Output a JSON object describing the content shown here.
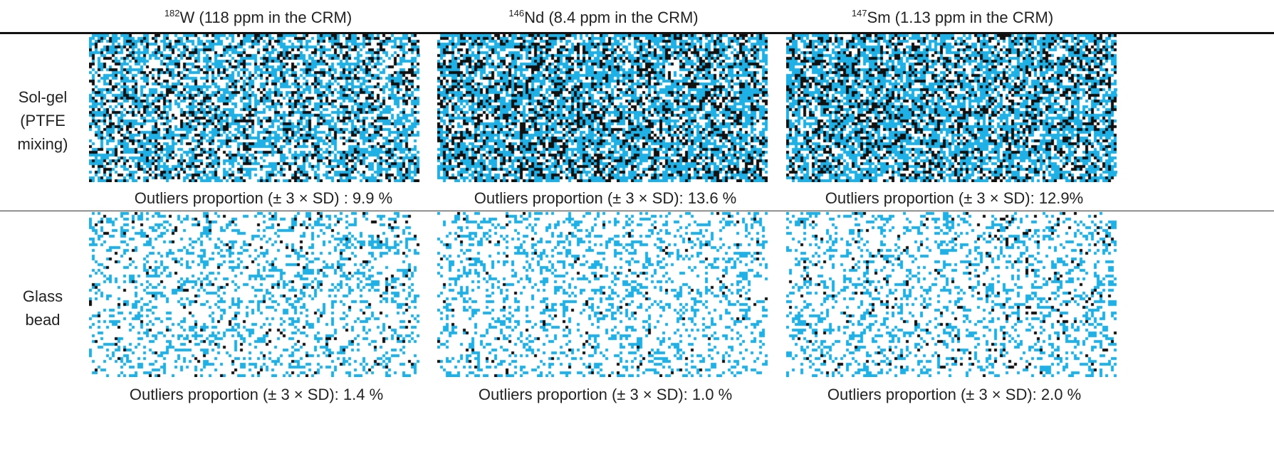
{
  "table": {
    "columns": [
      {
        "isotope_mass": "182",
        "element": "W",
        "detail": " (118 ppm in the CRM)"
      },
      {
        "isotope_mass": "146",
        "element": "Nd",
        "detail": " (8.4 ppm in the CRM)"
      },
      {
        "isotope_mass": "147",
        "element": "Sm",
        "detail": " (1.13 ppm in the CRM)"
      }
    ],
    "rows": [
      {
        "label_lines": [
          "Sol-gel",
          "(PTFE",
          "mixing)"
        ],
        "captions": [
          "Outliers proportion (± 3 × SD) : 9.9 %",
          "Outliers proportion (± 3 × SD): 13.6 %",
          "Outliers proportion (± 3 × SD): 12.9%"
        ],
        "outlier_percent": [
          9.9,
          13.6,
          12.9
        ]
      },
      {
        "label_lines": [
          "Glass",
          "bead"
        ],
        "captions": [
          "Outliers proportion (± 3 × SD): 1.4 %",
          "Outliers proportion (± 3 × SD): 1.0 %",
          "Outliers proportion (± 3 × SD): 2.0 %"
        ],
        "outlier_percent": [
          1.4,
          1.0,
          2.0
        ]
      }
    ]
  },
  "colors": {
    "in_range_pixel": "#1fb0e6",
    "outlier_pixel": "#111111",
    "background": "#ffffff"
  }
}
